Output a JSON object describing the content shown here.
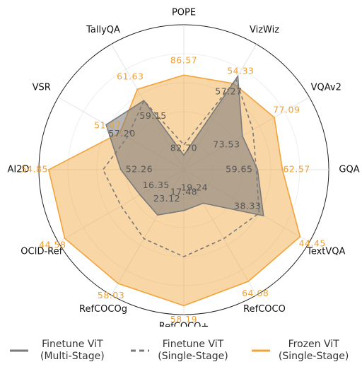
{
  "chart_data": {
    "type": "radar",
    "categories": [
      "POPE",
      "VizWiz",
      "VQAv2",
      "GQA",
      "TextVQA",
      "RefCOCO",
      "RefCOCO+",
      "RefCOCOg",
      "OCID-Ref",
      "AI2D",
      "VSR",
      "TallyQA"
    ],
    "axis_ranges": [
      [
        82,
        89
      ],
      [
        20,
        70
      ],
      [
        67,
        81
      ],
      [
        51,
        68
      ],
      [
        25,
        46
      ],
      [
        0,
        72
      ],
      [
        0,
        62
      ],
      [
        0,
        64
      ],
      [
        0,
        47
      ],
      [
        50,
        55.2
      ],
      [
        25,
        77
      ],
      [
        44,
        71.5
      ]
    ],
    "series": [
      {
        "name": "Finetune ViT (Multi-Stage)",
        "color": "#7a7a7a",
        "style": "solid",
        "values": [
          82.7,
          57.27,
          73.53,
          59.65,
          38.33,
          19.24,
          17.48,
          23.12,
          16.35,
          52.26,
          57.2,
          59.15
        ],
        "value_labels": [
          "82.70",
          "57.27",
          "73.53",
          "59.65",
          "38.33",
          "19.24",
          "17.48",
          "23.12",
          "16.35",
          "52.26",
          "57.20",
          "59.15"
        ]
      },
      {
        "name": "Finetune ViT (Single-Stage)",
        "color": "#7a7a7a",
        "style": "dashed",
        "values": [
          83.2,
          56.0,
          74.7,
          59.5,
          37.6,
          39.6,
          37.2,
          35.2,
          23.5,
          52.9,
          48.4,
          59.1
        ]
      },
      {
        "name": "Frozen ViT (Single-Stage)",
        "color": "#f2a33a",
        "style": "solid",
        "values": [
          86.57,
          54.33,
          77.09,
          62.57,
          44.45,
          64.08,
          58.19,
          58.03,
          44.58,
          54.85,
          51.47,
          61.63
        ],
        "value_labels": [
          "86.57",
          "54.33",
          "77.09",
          "62.57",
          "44.45",
          "64.08",
          "58.19",
          "58.03",
          "44.58",
          "54.85",
          "51.47",
          "61.63"
        ]
      }
    ]
  }
}
